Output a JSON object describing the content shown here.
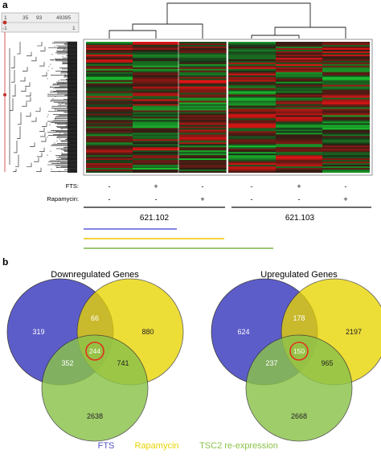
{
  "panel_a": {
    "label": "a",
    "scale": {
      "ticks": [
        "1",
        "35",
        "93",
        "49395"
      ],
      "range_min": "-1",
      "range_max": "1"
    },
    "row_labels": [
      "FTS:",
      "Rapamycin:"
    ],
    "fts_signs": [
      "-",
      "+",
      "-",
      "-",
      "+",
      "-"
    ],
    "rapamycin_signs": [
      "-",
      "-",
      "+",
      "-",
      "-",
      "+"
    ],
    "groups": [
      "621.102",
      "621.103"
    ],
    "bar_colors": [
      "#5b5bd6",
      "#f2c200",
      "#7ab648"
    ]
  },
  "panel_b": {
    "label": "b",
    "downregulated": {
      "title": "Downregulated Genes",
      "fts_only": "319",
      "rapa_only": "880",
      "tsc2_only": "2638",
      "fts_rapa": "66",
      "fts_tsc2": "352",
      "rapa_tsc2": "741",
      "all": "244"
    },
    "upregulated": {
      "title": "Upregulated Genes",
      "fts_only": "624",
      "rapa_only": "2197",
      "tsc2_only": "2668",
      "fts_rapa": "178",
      "fts_tsc2": "237",
      "rapa_tsc2": "965",
      "all": "150"
    },
    "legend": [
      {
        "label": "FTS",
        "color": "#5555c8"
      },
      {
        "label": "Rapamycin",
        "color": "#e8d400"
      },
      {
        "label": "TSC2 re-expression",
        "color": "#8bc34a"
      }
    ]
  }
}
